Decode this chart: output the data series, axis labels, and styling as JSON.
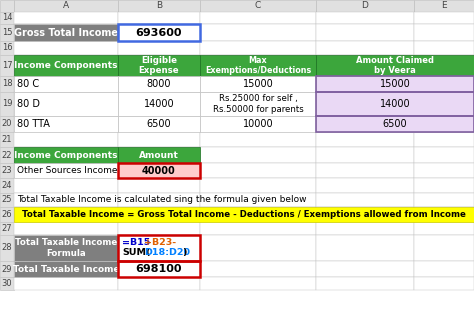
{
  "green": "#3CA63C",
  "white": "#FFFFFF",
  "yellow": "#FFFF00",
  "light_purple": "#EAD9F5",
  "light_red": "#FFCCCC",
  "gray_header": "#7F7F7F",
  "grid_c": "#C0C0C0",
  "header_bg": "#E0E0E0",
  "blue_border": "#4169E1",
  "red_border": "#CC0000",
  "purple_border": "#8060A0",
  "note_text": "Total Taxable Income is calculated sing the formula given below",
  "formula_text": "Total Taxable Income = Gross Total Income - Deductions / Exemptions allowed from Income",
  "row_labels": [
    "14",
    "15",
    "16",
    "17",
    "18",
    "19",
    "20",
    "21",
    "22",
    "23",
    "24",
    "25",
    "26",
    "27",
    "28",
    "29",
    "30"
  ],
  "col_labels": [
    "A",
    "B",
    "C",
    "D",
    "E"
  ],
  "figw": 4.74,
  "figh": 3.13,
  "dpi": 100
}
